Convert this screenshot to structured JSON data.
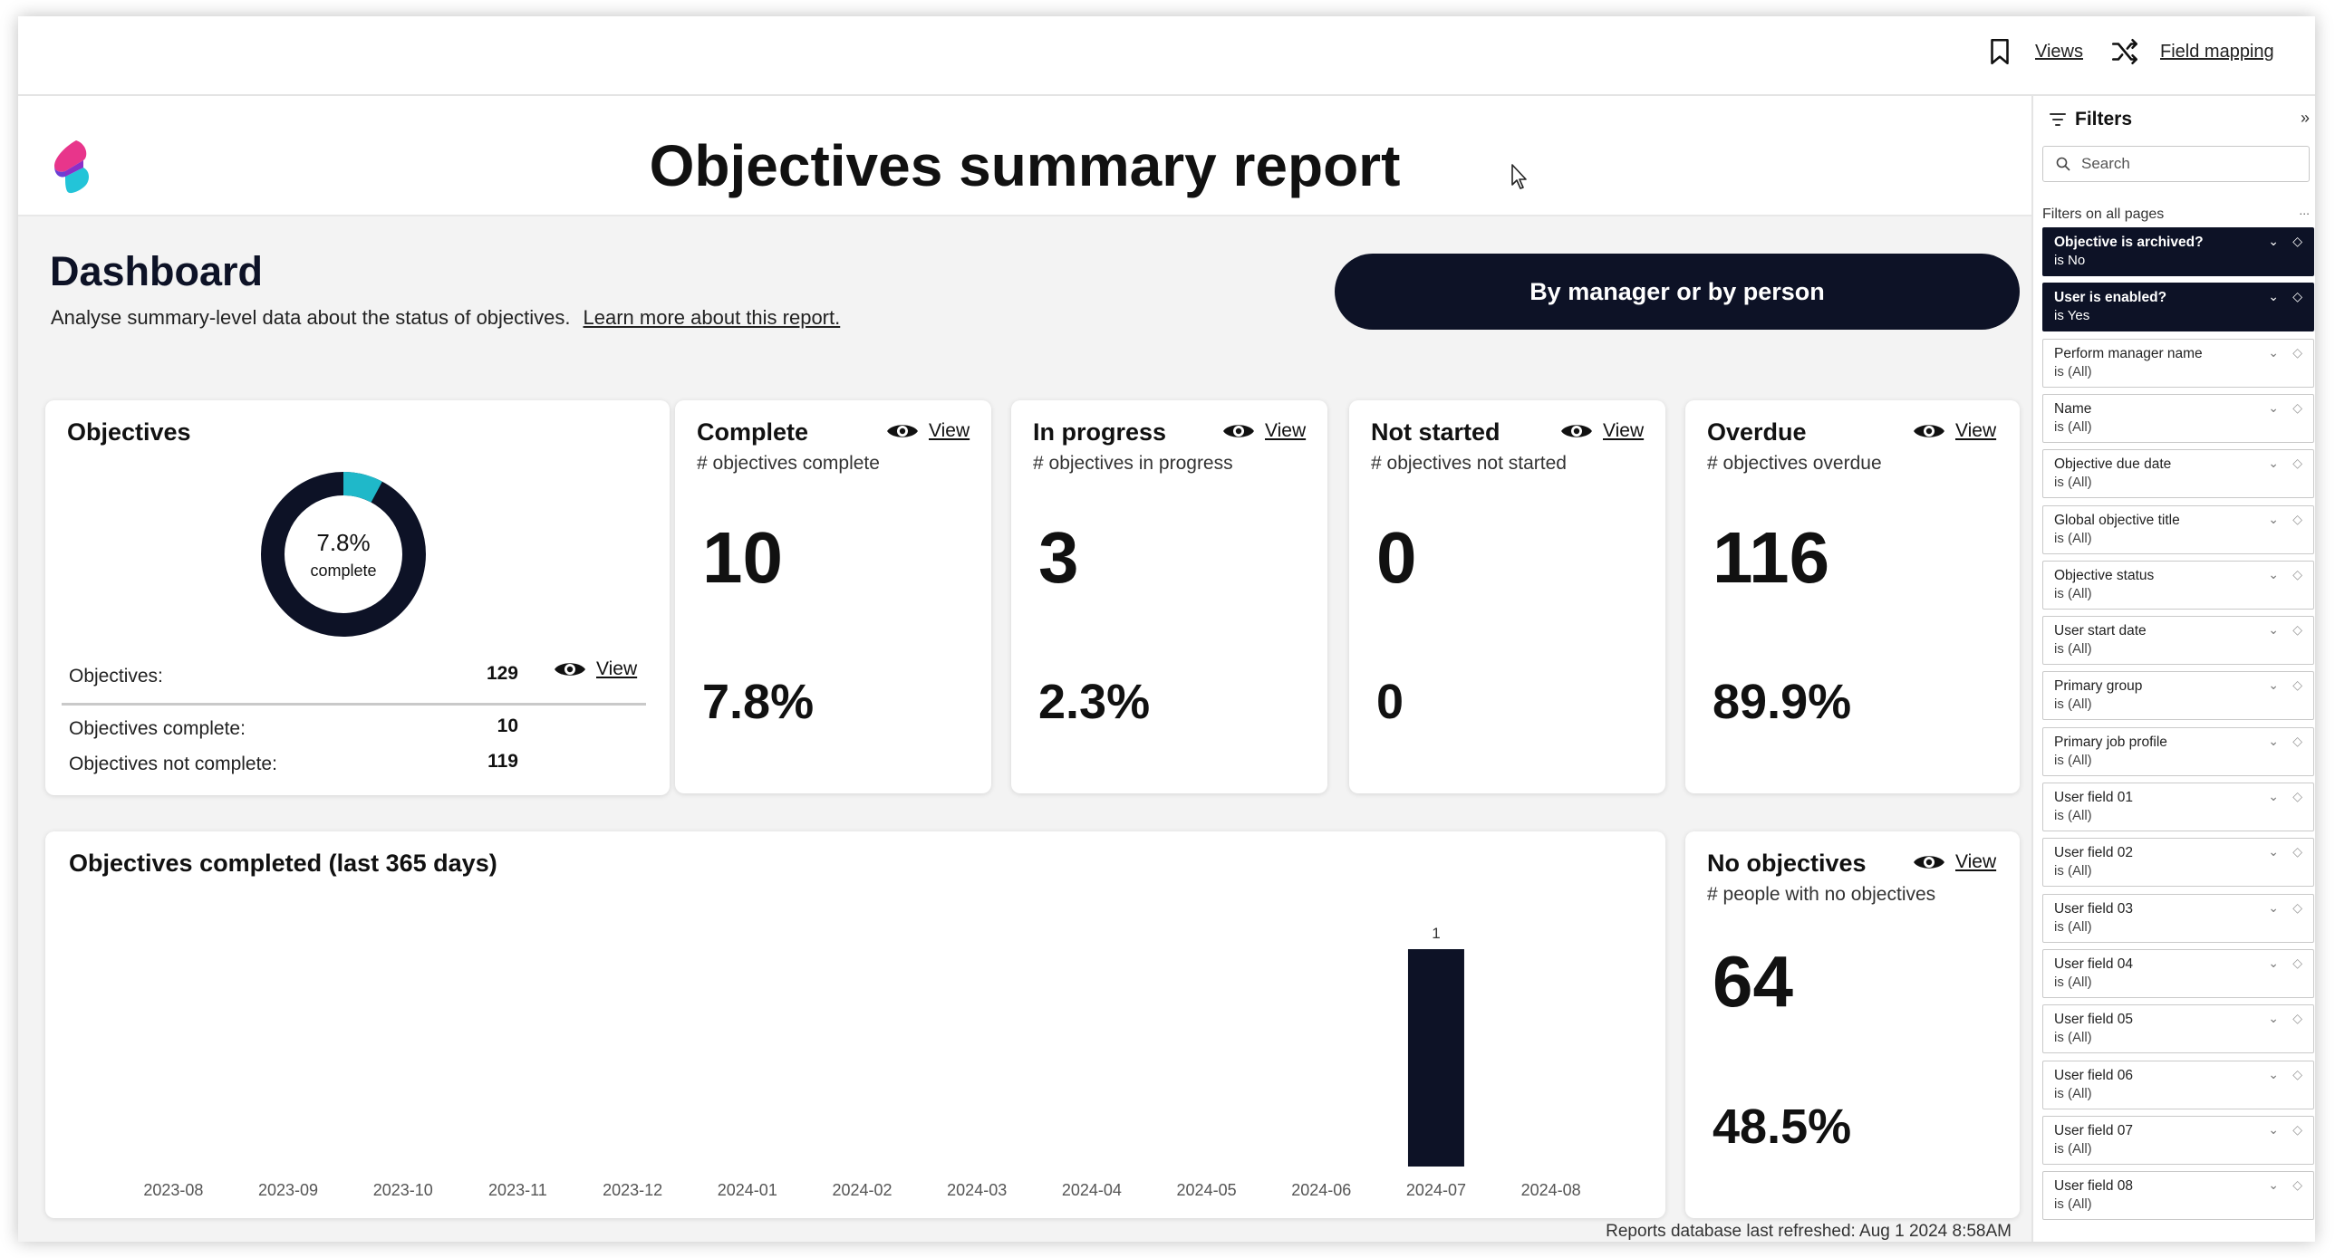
{
  "topbar": {
    "views_label": "Views",
    "field_mapping_label": "Field mapping"
  },
  "report": {
    "title": "Objectives summary report",
    "dashboard_title": "Dashboard",
    "dashboard_subtitle": "Analyse summary-level data about the status of objectives.",
    "learn_more": "Learn more about this report.",
    "manager_button": "By manager or by person",
    "refresh_text": "Reports database last refreshed: Aug  1 2024  8:58AM"
  },
  "objectives_card": {
    "title": "Objectives",
    "donut_pct": "7.8%",
    "donut_label": "complete",
    "donut_fraction": 0.078,
    "objectives_label": "Objectives:",
    "objectives_value": "129",
    "complete_label": "Objectives complete:",
    "complete_value": "10",
    "not_complete_label": "Objectives not complete:",
    "not_complete_value": "119",
    "view_label": "View"
  },
  "kpis": [
    {
      "title": "Complete",
      "subtitle": "# objectives complete",
      "value": "10",
      "pct": "7.8%",
      "view": "View"
    },
    {
      "title": "In progress",
      "subtitle": "# objectives in progress",
      "value": "3",
      "pct": "2.3%",
      "view": "View"
    },
    {
      "title": "Not started",
      "subtitle": "# objectives not started",
      "value": "0",
      "pct": "0",
      "view": "View"
    },
    {
      "title": "Overdue",
      "subtitle": "# objectives overdue",
      "value": "116",
      "pct": "89.9%",
      "view": "View"
    }
  ],
  "no_objectives": {
    "title": "No objectives",
    "subtitle": "# people with no objectives",
    "value": "64",
    "pct": "48.5%",
    "view": "View"
  },
  "chart_data": {
    "type": "bar",
    "title": "Objectives completed (last 365 days)",
    "categories": [
      "2023-08",
      "2023-09",
      "2023-10",
      "2023-11",
      "2023-12",
      "2024-01",
      "2024-02",
      "2024-03",
      "2024-04",
      "2024-05",
      "2024-06",
      "2024-07",
      "2024-08"
    ],
    "values": [
      0,
      0,
      0,
      0,
      0,
      0,
      0,
      0,
      0,
      0,
      0,
      1,
      0
    ],
    "data_labels": [
      "",
      "",
      "",
      "",
      "",
      "",
      "",
      "",
      "",
      "",
      "",
      "1",
      ""
    ],
    "ylim": [
      0,
      1
    ],
    "grid": false,
    "bar_color": "#0d1226"
  },
  "filters": {
    "title": "Filters",
    "search_placeholder": "Search",
    "section_label": "Filters on all pages",
    "more": "...",
    "items": [
      {
        "name": "Objective is archived?",
        "value": "is No",
        "active": true
      },
      {
        "name": "User is enabled?",
        "value": "is Yes",
        "active": true
      },
      {
        "name": "Perform manager name",
        "value": "is (All)",
        "active": false
      },
      {
        "name": "Name",
        "value": "is (All)",
        "active": false
      },
      {
        "name": "Objective due date",
        "value": "is (All)",
        "active": false
      },
      {
        "name": "Global objective title",
        "value": "is (All)",
        "active": false
      },
      {
        "name": "Objective status",
        "value": "is (All)",
        "active": false
      },
      {
        "name": "User start date",
        "value": "is (All)",
        "active": false
      },
      {
        "name": "Primary group",
        "value": "is (All)",
        "active": false
      },
      {
        "name": "Primary job profile",
        "value": "is (All)",
        "active": false
      },
      {
        "name": "User field 01",
        "value": "is (All)",
        "active": false
      },
      {
        "name": "User field 02",
        "value": "is (All)",
        "active": false
      },
      {
        "name": "User field 03",
        "value": "is (All)",
        "active": false
      },
      {
        "name": "User field 04",
        "value": "is (All)",
        "active": false
      },
      {
        "name": "User field 05",
        "value": "is (All)",
        "active": false
      },
      {
        "name": "User field 06",
        "value": "is (All)",
        "active": false
      },
      {
        "name": "User field 07",
        "value": "is (All)",
        "active": false
      },
      {
        "name": "User field 08",
        "value": "is (All)",
        "active": false
      }
    ]
  },
  "colors": {
    "navy": "#0d1226",
    "donut_accent": "#1fb8c9",
    "logo_pink": "#e8358b",
    "logo_purple": "#6b3fd4",
    "logo_cyan": "#23c4d8"
  }
}
